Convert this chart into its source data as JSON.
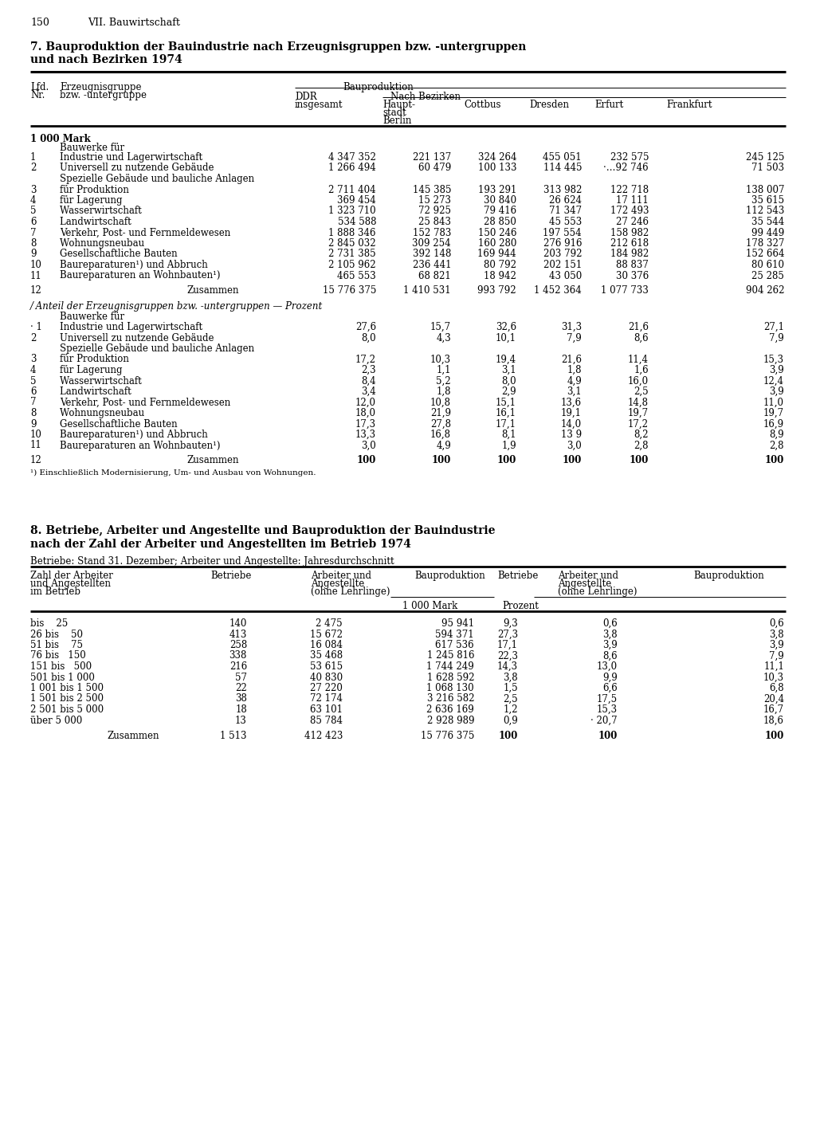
{
  "page_num": "150",
  "chapter": "VII. Bauwirtschaft",
  "table7_title_line1": "7. Bauproduktion der Bauindustrie nach Erzeugnisgruppen bzw. -untergruppen",
  "table7_title_line2": "und nach Bezirken 1974",
  "table7_unit": "1 000 Mark",
  "table7_section1": "Bauwerke für",
  "table7_rows": [
    [
      "1",
      "Industrie und Lagerwirtschaft           ",
      "4 347 352",
      "221 137",
      "324 264",
      "455 051",
      "232 575",
      "245 125"
    ],
    [
      "2",
      "Universell zu nutzende Gebäude        ",
      "1 266 494",
      "60 479",
      "100 133",
      "114 445",
      "·…92 746",
      "71 503"
    ],
    [
      "",
      "Spezielle Gebäude und bauliche Anlagen",
      "",
      "",
      "",
      "",
      "",
      ""
    ],
    [
      "3",
      "für Produktion                  ",
      "2 711 404",
      "145 385",
      "193 291",
      "313 982",
      "122 718",
      "138 007"
    ],
    [
      "4",
      "für Lagerung                   ",
      "369 454",
      "15 273",
      "30 840",
      "26 624",
      "17 111",
      "35 615"
    ],
    [
      "5",
      "Wasserwirtschaft                  ",
      "1 323 710",
      "72 925",
      "79 416",
      "71 347",
      "172 493",
      "112 543"
    ],
    [
      "6",
      "Landwirtschaft                     ",
      "534 588",
      "25 843",
      "28 850",
      "45 553",
      "27 246",
      "35 544"
    ],
    [
      "7",
      "Verkehr, Post- und Fernmeldewesen     ",
      "1 888 346",
      "152 783",
      "150 246",
      "197 554",
      "158 982",
      "99 449"
    ],
    [
      "8",
      "Wohnungsneubau                  ",
      "2 845 032",
      "309 254",
      "160 280",
      "276 916",
      "212 618",
      "178 327"
    ],
    [
      "9",
      "Gesellschaftliche Bauten              ",
      "2 731 385",
      "392 148",
      "169 944",
      "203 792",
      "184 982",
      "152 664"
    ],
    [
      "10",
      "Baureparaturen¹) und Abbruch         ",
      "2 105 962",
      "236 441",
      "80 792",
      "202 151",
      "88 837",
      "80 610"
    ],
    [
      "11",
      "Baureparaturen an Wohnbauten¹)       ",
      "465 553",
      "68 821",
      "18 942",
      "43 050",
      "30 376",
      "25 285"
    ]
  ],
  "table7_total": [
    "12",
    "Zusammen",
    "15 776 375",
    "1 410 531",
    "993 792",
    "1 452 364",
    "1 077 733",
    "904 262"
  ],
  "table7_section2_title": "/ Anteil der Erzeugnisgruppen bzw. -untergruppen — Prozent",
  "table7_section2": "Bauwerke für",
  "table7_rows2": [
    [
      "· 1",
      "Industrie und Lagerwirtschaft           ",
      "27,6",
      "15,7",
      "32,6",
      "31,3",
      "21,6",
      "27,1"
    ],
    [
      "2",
      "Universell zu nutzende Gebäude        ",
      "8,0",
      "4,3",
      "10,1",
      "7,9",
      "8,6",
      "7,9"
    ],
    [
      "",
      "Spezielle Gebäude und bauliche Anlagen",
      "",
      "",
      "",
      "",
      "",
      ""
    ],
    [
      "3",
      "für Produktion                  ",
      "17,2",
      "10,3",
      "19,4",
      "21,6",
      "11,4",
      "15,3"
    ],
    [
      "4",
      "für Lagerung                   ",
      "2,3",
      "1,1",
      "3,1",
      "1,8",
      "1,6",
      "3,9"
    ],
    [
      "5",
      "Wasserwirtschaft                  ",
      "8,4",
      "5,2",
      "8,0",
      "4,9",
      "16,0",
      "12,4"
    ],
    [
      "6",
      "Landwirtschaft                     ",
      "3,4",
      "1,8",
      "2,9",
      "3,1",
      "2,5",
      "3,9"
    ],
    [
      "7",
      "Verkehr, Post- und Fernmeldewesen     ",
      "12,0",
      "10,8",
      "15,1",
      "13,6",
      "14,8",
      "11,0"
    ],
    [
      "8",
      "Wohnungsneubau                  ",
      "18,0",
      "21,9",
      "16,1",
      "19,1",
      "19,7",
      "19,7"
    ],
    [
      "9",
      "Gesellschaftliche Bauten              ",
      "17,3",
      "27,8",
      "17,1",
      "14,0",
      "17,2",
      "16,9"
    ],
    [
      "10",
      "Baureparaturen¹) und Abbruch         ",
      "13,3",
      "16,8",
      "8,1",
      "13 9",
      "8,2",
      "8,9"
    ],
    [
      "11",
      "Baureparaturen an Wohnbauten¹)       ",
      "3,0",
      "4,9",
      "1,9",
      "3,0",
      "2,8",
      "2,8"
    ]
  ],
  "table7_total2": [
    "12",
    "Zusammen",
    "100",
    "100",
    "100",
    "100",
    "100",
    "100"
  ],
  "table7_footnote": "¹) Einschließlich Modernisierung, Um- und Ausbau von Wohnungen.",
  "table8_title_line1": "8. Betriebe, Arbeiter und Angestellte und Bauproduktion der Bauindustrie",
  "table8_title_line2": "nach der Zahl der Arbeiter und Angestellten im Betrieb 1974",
  "table8_subtitle": "Betriebe: Stand 31. Dezember; Arbeiter und Angestellte: Jahresdurchschnitt",
  "table8_rows": [
    [
      "bis    25            ",
      "140",
      "2 475",
      "95 941",
      "9,3",
      "0,6",
      "0,6"
    ],
    [
      "26 bis    50            ",
      "413",
      "15 672",
      "594 371",
      "27,3",
      "3,8",
      "3,8"
    ],
    [
      "51 bis    75            ",
      "258",
      "16 084",
      "617 536",
      "17,1",
      "3,9",
      "3,9"
    ],
    [
      "76 bis   150            ",
      "338",
      "35 468",
      "1 245 816",
      "22,3",
      "8,6",
      "7,9"
    ],
    [
      "151 bis   500            ",
      "216",
      "53 615",
      "1 744 249",
      "14,3",
      "13,0",
      "11,1"
    ],
    [
      "501 bis 1 000            ",
      "57",
      "40 830",
      "1 628 592",
      "3,8",
      "9,9",
      "10,3"
    ],
    [
      "1 001 bis 1 500            ",
      "22",
      "27 220",
      "1 068 130",
      "1,5",
      "6,6",
      "6,8"
    ],
    [
      "1 501 bis 2 500            ",
      "38",
      "72 174",
      "3 216 582",
      "2,5",
      "17,5",
      "20,4"
    ],
    [
      "2 501 bis 5 000            ",
      "18",
      "63 101",
      "2 636 169",
      "1,2",
      "15,3",
      "16,7"
    ],
    [
      "über 5 000            ",
      "13",
      "85 784",
      "2 928 989",
      "0,9",
      "· 20,7",
      "18,6"
    ]
  ],
  "table8_total": [
    "Zusammen",
    "1 513",
    "412 423",
    "15 776 375",
    "100",
    "100",
    "100"
  ]
}
